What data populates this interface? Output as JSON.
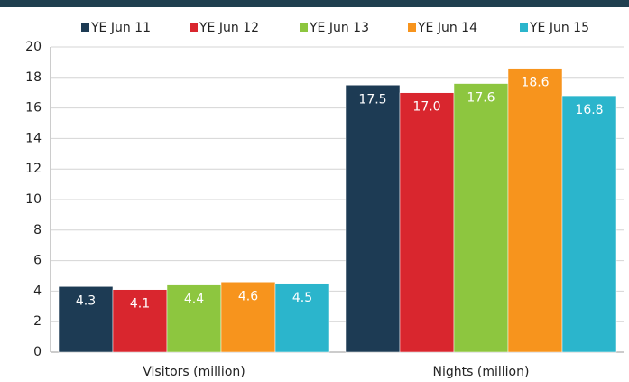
{
  "chart_data": {
    "type": "bar",
    "categories": [
      "Visitors (million)",
      "Nights (million)"
    ],
    "series": [
      {
        "name": "YE Jun 11",
        "color": "#1d3b54",
        "values": [
          4.3,
          17.5
        ],
        "value_labels": [
          "4.3",
          "17.5"
        ]
      },
      {
        "name": "YE Jun 12",
        "color": "#d9262e",
        "values": [
          4.1,
          17.0
        ],
        "value_labels": [
          "4.1",
          "17.0"
        ]
      },
      {
        "name": "YE Jun 13",
        "color": "#8dc63f",
        "values": [
          4.4,
          17.6
        ],
        "value_labels": [
          "4.4",
          "17.6"
        ]
      },
      {
        "name": "YE Jun 14",
        "color": "#f7941d",
        "values": [
          4.6,
          18.6
        ],
        "value_labels": [
          "4.6",
          "18.6"
        ]
      },
      {
        "name": "YE Jun 15",
        "color": "#2bb5cc",
        "values": [
          4.5,
          16.8
        ],
        "value_labels": [
          "4.5",
          "16.8"
        ]
      }
    ],
    "ylim": [
      0,
      20
    ],
    "yticks": [
      0,
      2,
      4,
      6,
      8,
      10,
      12,
      14,
      16,
      18,
      20
    ],
    "grid": true,
    "legend": "top"
  }
}
